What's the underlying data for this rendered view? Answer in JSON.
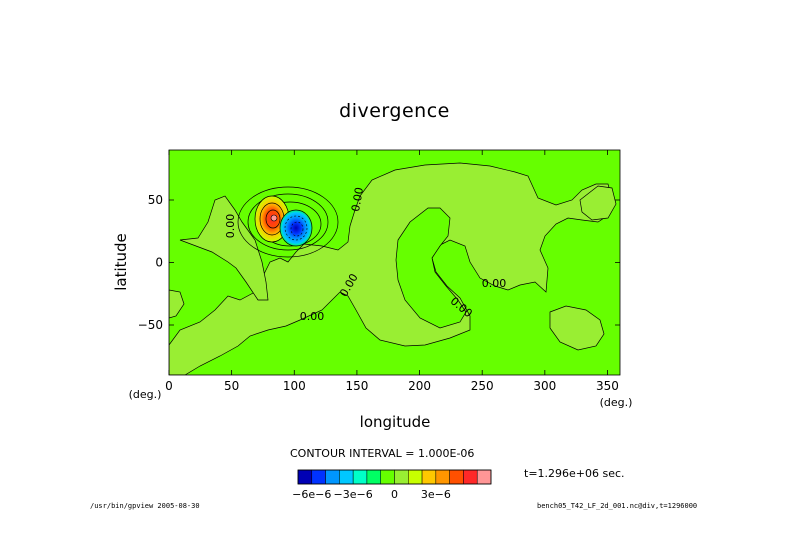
{
  "figure": {
    "title": "divergence",
    "contour_interval_text": "CONTOUR INTERVAL = 1.000E-06",
    "time_text": "t=1.296e+06 sec.",
    "program_footer": "/usr/bin/gpview  2005-08-30",
    "file_footer": "bench05_T42_LF_2d_001.nc@div,t=1296000"
  },
  "colors": {
    "background_field": "#66ff00",
    "neutral_field": "#99ee33",
    "contour_line": "#000000"
  },
  "chart_data": {
    "type": "heatmap",
    "title": "divergence",
    "xlabel": "longitude",
    "ylabel": "latitude",
    "x_unit": "(deg.)",
    "y_unit": "(deg.)",
    "xlim": [
      0,
      360
    ],
    "ylim": [
      -90,
      90
    ],
    "xticks": [
      0,
      50,
      100,
      150,
      200,
      250,
      300,
      350
    ],
    "yticks": [
      -50,
      0,
      50
    ],
    "contour_interval": 1e-06,
    "contour_labels": [
      "0.00",
      "0.00",
      "0.00",
      "0.00",
      "0.00",
      "0.00"
    ],
    "features": [
      {
        "kind": "maximum",
        "lon": 85,
        "lat": 33,
        "approx_value": 4e-06
      },
      {
        "kind": "minimum",
        "lon": 103,
        "lat": 25,
        "approx_value": -5e-06
      }
    ],
    "colorbar": {
      "levels": [
        -7e-06,
        -6e-06,
        -5e-06,
        -4e-06,
        -3e-06,
        -2e-06,
        -1e-06,
        0,
        1e-06,
        2e-06,
        3e-06,
        4e-06,
        5e-06,
        6e-06
      ],
      "colors": [
        "#0000b4",
        "#0032ff",
        "#0096ff",
        "#00c8ff",
        "#00ffc8",
        "#00ff64",
        "#66ff00",
        "#99ee33",
        "#c8ff00",
        "#ffc800",
        "#ff9600",
        "#ff5000",
        "#ff2828",
        "#ff9696"
      ],
      "tick_labels": [
        "−6e−6",
        "−3e−6",
        "0",
        "3e−6"
      ],
      "tick_values": [
        -6e-06,
        -3e-06,
        0,
        3e-06
      ]
    }
  }
}
